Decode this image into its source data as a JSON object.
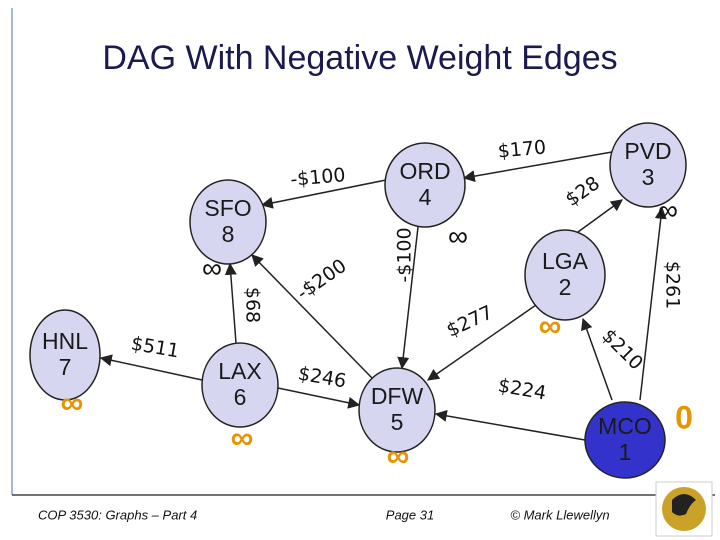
{
  "title": "DAG With Negative Weight Edges",
  "nodes": [
    {
      "label": "HNL",
      "order": 7,
      "distance": "∞"
    },
    {
      "label": "SFO",
      "order": 8,
      "distance": "∞"
    },
    {
      "label": "ORD",
      "order": 4,
      "distance": "∞"
    },
    {
      "label": "PVD",
      "order": 3,
      "distance": "∞"
    },
    {
      "label": "LGA",
      "order": 2,
      "distance": "∞"
    },
    {
      "label": "LAX",
      "order": 6,
      "distance": "∞"
    },
    {
      "label": "DFW",
      "order": 5,
      "distance": "∞"
    },
    {
      "label": "MCO",
      "order": 1,
      "distance": 0
    }
  ],
  "edges": [
    {
      "label": "-$100"
    },
    {
      "label": "$170"
    },
    {
      "label": "$28"
    },
    {
      "label": "$261"
    },
    {
      "label": "-$100"
    },
    {
      "label": "-$200"
    },
    {
      "label": "$68"
    },
    {
      "label": "$277"
    },
    {
      "label": "$210"
    },
    {
      "label": "$224"
    },
    {
      "label": "$246"
    },
    {
      "label": "$511"
    }
  ],
  "footer": {
    "course": "COP 3530: Graphs – Part 4",
    "page": "Page 31",
    "author": "© Mark Llewellyn"
  }
}
